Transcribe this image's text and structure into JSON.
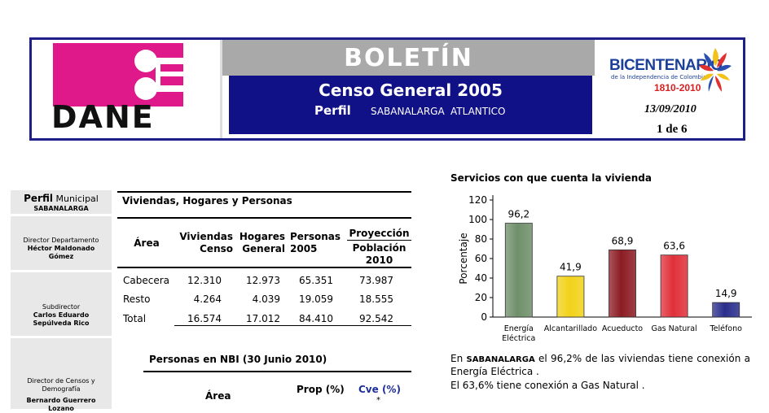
{
  "header": {
    "logo_text": "DANE",
    "title": "BOLETÍN",
    "subtitle": "Censo General 2005",
    "perfil_label": "Perfil",
    "place": "SABANALARGA",
    "department": "ATLANTICO",
    "bicentenario": "BICENTENARIO",
    "bicentenario_sub": "de la Independencia de Colombia",
    "bicentenario_years": "1810-2010",
    "date": "13/09/2010",
    "page": "1 de 6",
    "colors": {
      "magenta": "#e0198a",
      "navy": "#101087",
      "gray": "#a9a9a9"
    }
  },
  "sidebar": {
    "perfil_bold": "Perfil",
    "perfil_rest": "Municipal",
    "place": "SABANALARGA",
    "people": [
      {
        "role": "Director Departamento",
        "name": "Héctor Maldonado Gómez"
      },
      {
        "role": "Subdirector",
        "name": "Carlos Eduardo Sepúlveda Rico"
      },
      {
        "role": "Director de Censos y Demografía",
        "name": "Bernardo Guerrero Lozano"
      }
    ]
  },
  "viviendas_table": {
    "title": "Viviendas, Hogares y Personas",
    "headers": {
      "area": "Área",
      "viviendas": "Viviendas Censo",
      "hogares": "Hogares General",
      "personas": "Personas 2005",
      "proyeccion": "Proyección",
      "poblacion": "Población 2010"
    },
    "rows": [
      {
        "area": "Cabecera",
        "viviendas": "12.310",
        "hogares": "12.973",
        "personas": "65.351",
        "poblacion": "73.987"
      },
      {
        "area": "Resto",
        "viviendas": "4.264",
        "hogares": "4.039",
        "personas": "19.059",
        "poblacion": "18.555"
      },
      {
        "area": "Total",
        "viviendas": "16.574",
        "hogares": "17.012",
        "personas": "84.410",
        "poblacion": "92.542"
      }
    ]
  },
  "nbi": {
    "title": "Personas en NBI (30 Junio 2010)",
    "area": "Área",
    "prop": "Prop (%)",
    "cve": "Cve (%)",
    "star": "*"
  },
  "chart_data": {
    "type": "bar",
    "title": "Servicios con que cuenta la vivienda",
    "ylabel": "Porcentaje",
    "xlabel": "",
    "ylim": [
      0,
      120
    ],
    "yticks": [
      0,
      20,
      40,
      60,
      80,
      100,
      120
    ],
    "categories": [
      "Energía Eléctrica",
      "Alcantarillado",
      "Acueducto",
      "Gas Natural",
      "Teléfono"
    ],
    "values": [
      96.2,
      41.9,
      68.9,
      63.6,
      14.9
    ],
    "value_labels": [
      "96,2",
      "41,9",
      "68,9",
      "63,6",
      "14,9"
    ],
    "colors": [
      "#6f8f6a",
      "#f2d21a",
      "#8c1c24",
      "#e0303a",
      "#2a2e8c"
    ],
    "grid": false,
    "legend": "none"
  },
  "chart_text": {
    "prefix": "En",
    "place": "SABANALARGA",
    "line1_rest": "el 96,2% de las viviendas tiene conexión a Energía Eléctrica .",
    "line2": "El 63,6% tiene conexión a Gas Natural ."
  }
}
